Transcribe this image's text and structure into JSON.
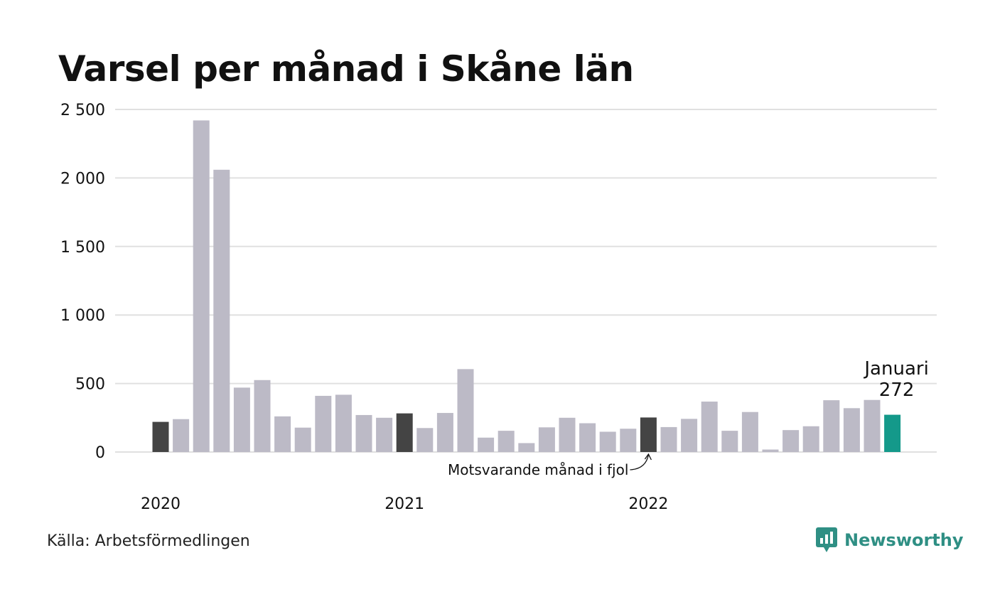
{
  "title": "Varsel per månad i Skåne län",
  "source": "Källa: Arbetsförmedlingen",
  "brand": {
    "name": "Newsworthy",
    "icon": "newsworthy-logo-icon",
    "color": "#2f8f84"
  },
  "chart_data": {
    "type": "bar",
    "title": "Varsel per månad i Skåne län",
    "xlabel": "",
    "ylabel": "",
    "ylim": [
      0,
      2500
    ],
    "yticks": [
      0,
      500,
      1000,
      1500,
      2000,
      2500
    ],
    "ytick_labels": [
      "0",
      "500",
      "1 000",
      "1 500",
      "2 000",
      "2 500"
    ],
    "x_labels": [
      {
        "index": 0,
        "text": "2020"
      },
      {
        "index": 12,
        "text": "2021"
      },
      {
        "index": 24,
        "text": "2022"
      }
    ],
    "grid": true,
    "colors": {
      "default": "#bcbac6",
      "previous_year": "#444444",
      "current": "#14998a",
      "grid": "#e0e0e0"
    },
    "values": [
      220,
      240,
      2420,
      2060,
      470,
      525,
      260,
      178,
      410,
      418,
      270,
      250,
      282,
      175,
      285,
      605,
      105,
      155,
      65,
      180,
      250,
      210,
      148,
      170,
      252,
      182,
      242,
      368,
      155,
      292,
      18,
      160,
      188,
      378,
      320,
      380,
      272
    ],
    "highlights": [
      {
        "index": 0,
        "kind": "previous_year"
      },
      {
        "index": 12,
        "kind": "previous_year"
      },
      {
        "index": 24,
        "kind": "previous_year"
      },
      {
        "index": 36,
        "kind": "current"
      }
    ],
    "annotations": {
      "current_label": "Januari",
      "current_value": "272",
      "previous_label": "Motsvarande månad i fjol"
    }
  }
}
